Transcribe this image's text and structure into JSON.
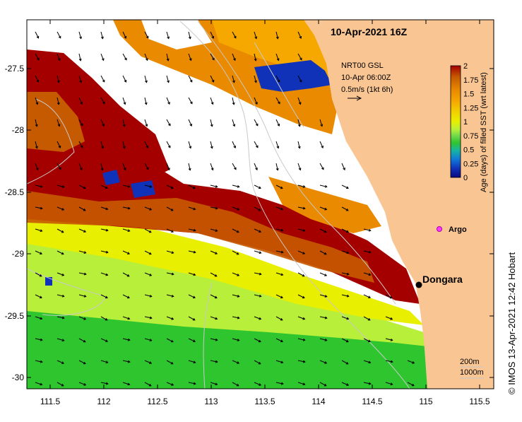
{
  "map": {
    "title": "10-Apr-2021 16Z",
    "wind_label": {
      "line1": "NRT00 GSL",
      "line2": "10-Apr 06:00Z",
      "line3": "0.5m/s (1kt 6h)"
    },
    "colorbar": {
      "label": "Age (days) of filled SST (wrt latest)",
      "ticks": [
        "2",
        "1.75",
        "1.5",
        "1.25",
        "1",
        "0.75",
        "0.5",
        "0.25",
        "0"
      ],
      "colors": [
        "#a50000",
        "#c65a00",
        "#e98a00",
        "#f6a800",
        "#f2d200",
        "#e8ef00",
        "#b8ef3a",
        "#6ed84a",
        "#2fc52f",
        "#17b4a3",
        "#1177d8",
        "#1032b8",
        "#0a0a80"
      ]
    },
    "places": [
      {
        "name": "Dongara",
        "lon": 114.93,
        "lat": -29.25
      },
      {
        "name": "Argo",
        "lon": 115.12,
        "lat": -28.8
      }
    ],
    "x_ticks": [
      "111.5",
      "112",
      "112.5",
      "113",
      "113.5",
      "114",
      "114.5",
      "115",
      "115.5"
    ],
    "y_ticks": [
      "-27.5",
      "-28",
      "-28.5",
      "-29",
      "-29.5",
      "-30"
    ],
    "bathymetry": {
      "label1": "200m",
      "label2": "1000m"
    },
    "credit": "© IMOS 13-Apr-2021 12:42 Hobart",
    "colors": {
      "land": "#f9c593",
      "darkred": "#a50000",
      "rust": "#c65a00",
      "orange": "#e98a00",
      "yellow": "#e8ef00",
      "lime": "#b8ef3a",
      "green": "#2fc52f",
      "blue": "#1032b8"
    }
  }
}
